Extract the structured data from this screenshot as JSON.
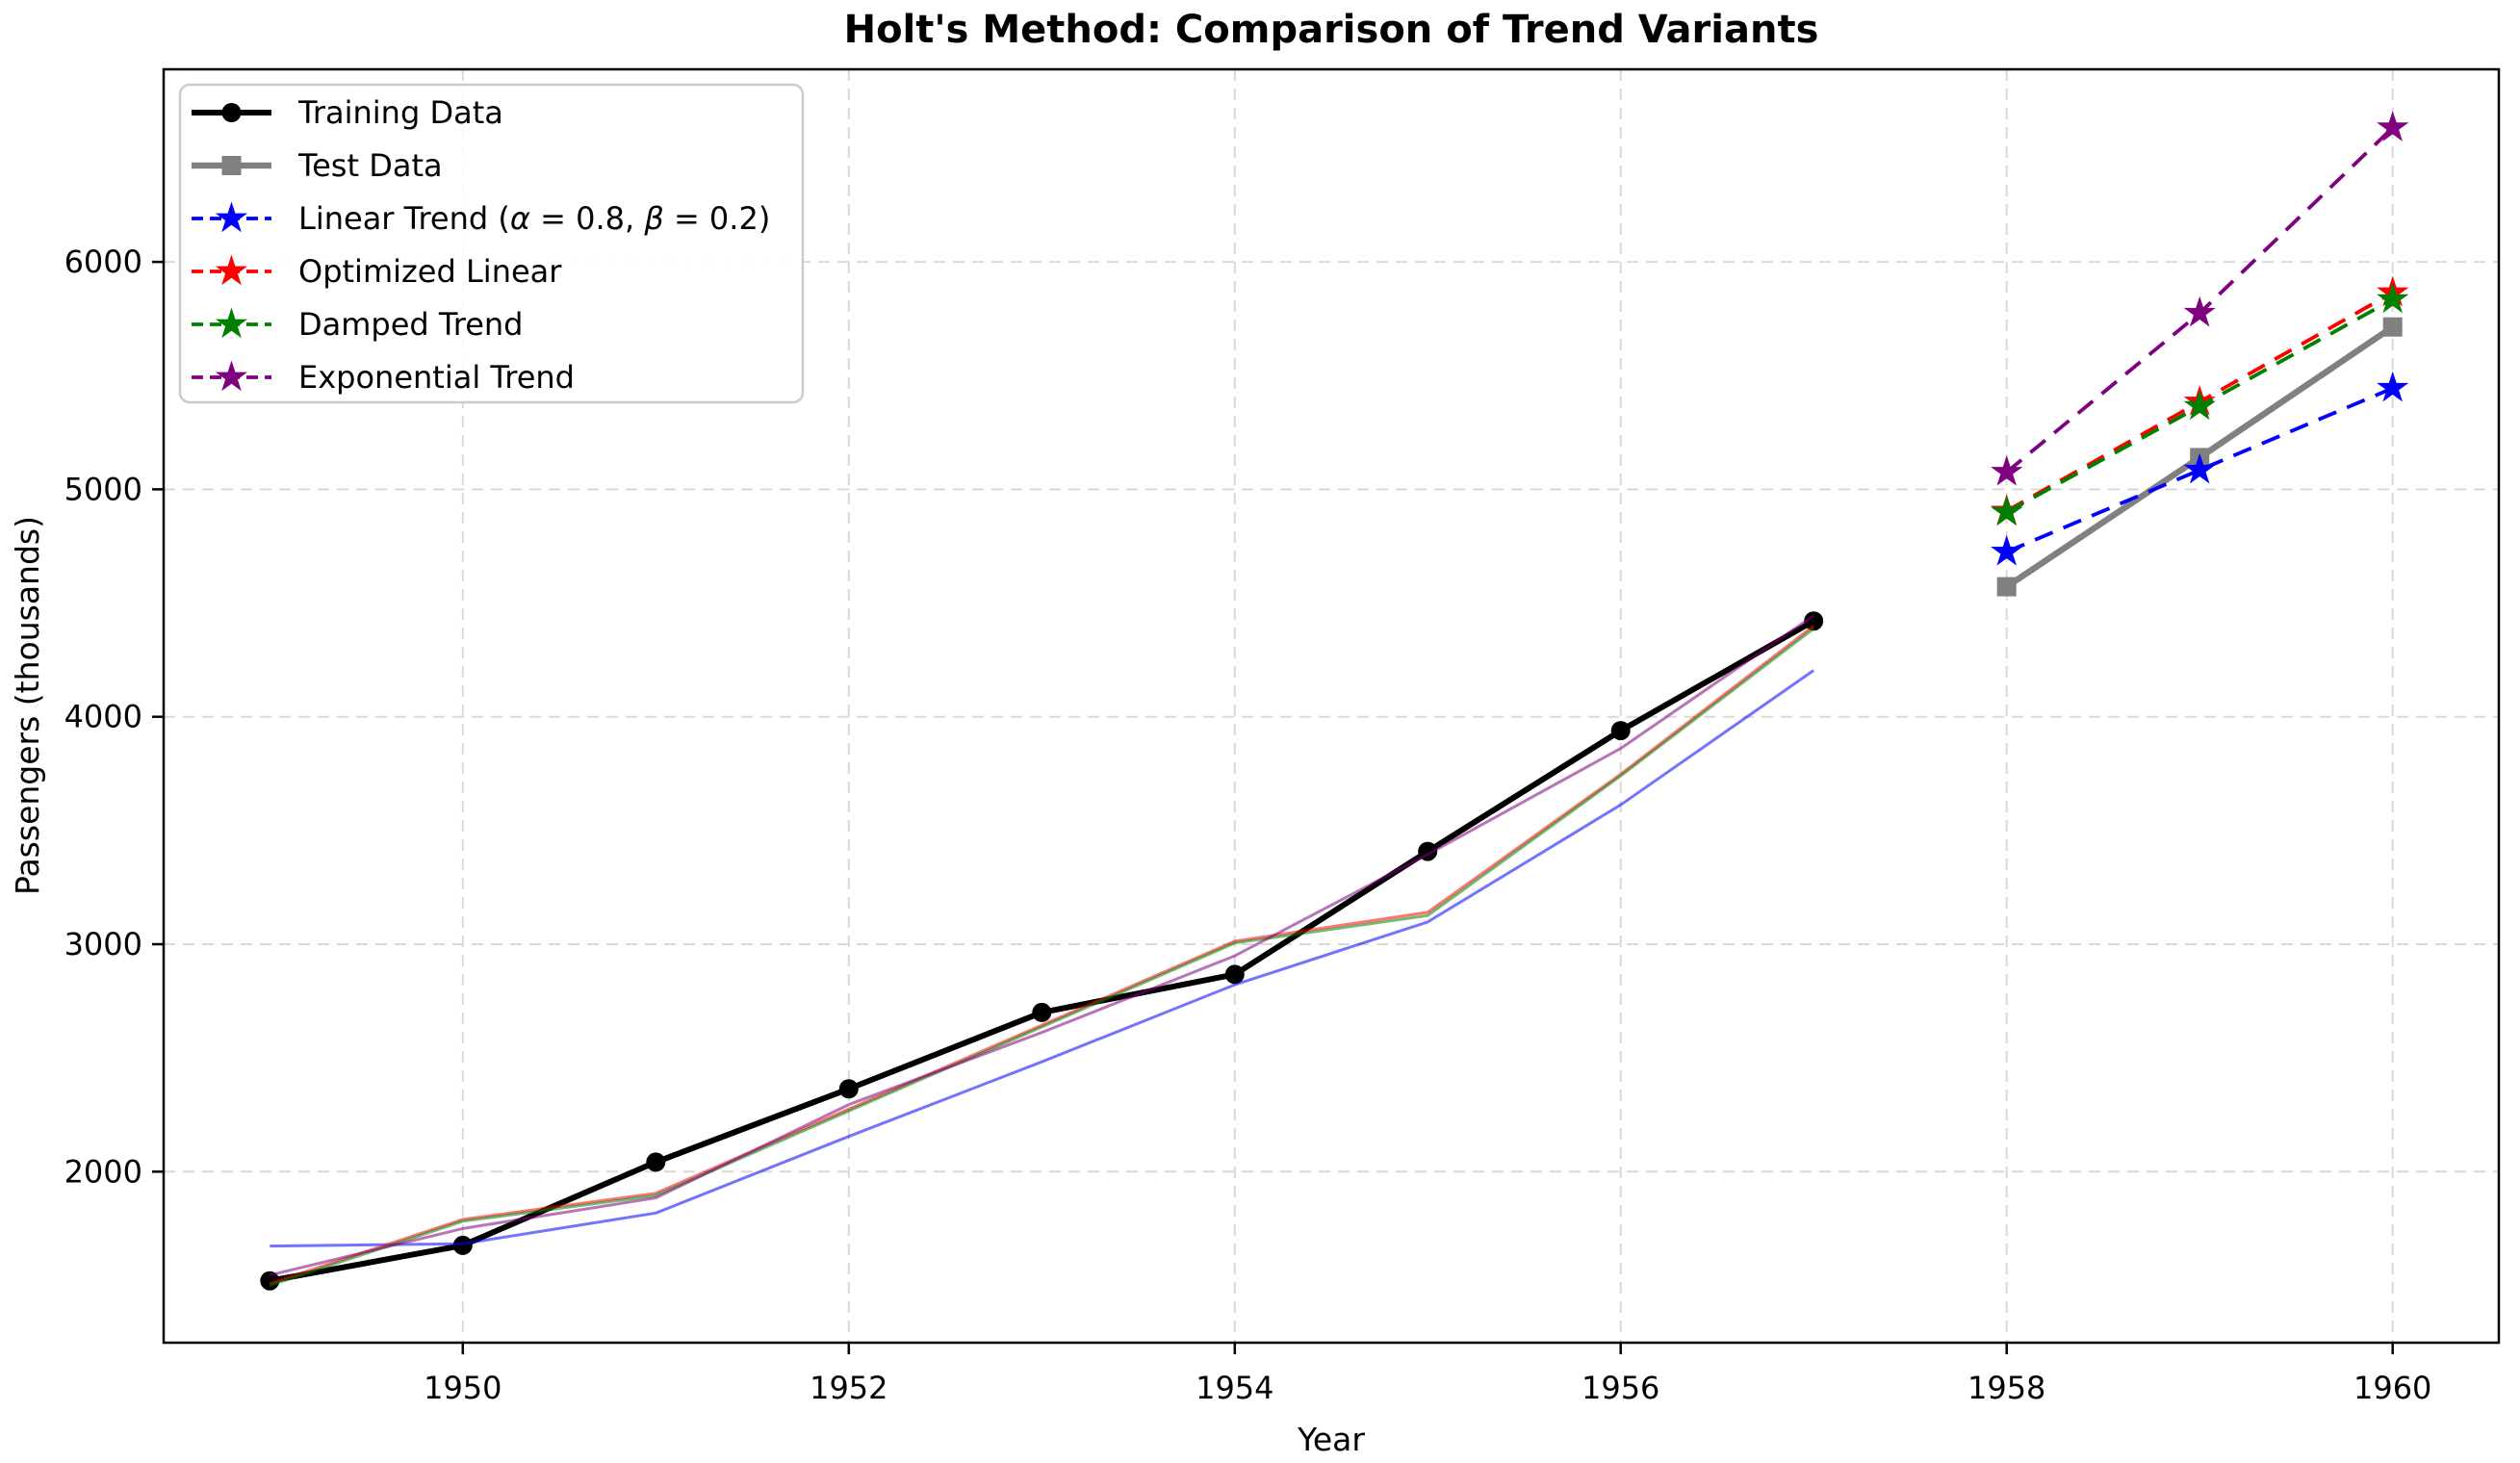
{
  "title": "Holt's Method: Comparison of Trend Variants",
  "chart_data": {
    "type": "line",
    "title": "Holt's Method: Comparison of Trend Variants",
    "xlabel": "Year",
    "ylabel": "Passengers (thousands)",
    "xlim": [
      1948.45,
      1960.55
    ],
    "ylim": [
      1248,
      6847
    ],
    "x_ticks": [
      1950,
      1952,
      1954,
      1956,
      1958,
      1960
    ],
    "y_ticks": [
      2000,
      3000,
      4000,
      5000,
      6000
    ],
    "grid": true,
    "grid_color": "#d9d9d9",
    "background_color": "#ffffff",
    "legend_position": "upper left",
    "series": [
      {
        "name": "Training Data",
        "role": "observed-train",
        "color": "#000000",
        "linestyle": "solid",
        "linewidth": 6,
        "marker": "circle",
        "x": [
          1949,
          1950,
          1951,
          1952,
          1953,
          1954,
          1955,
          1956,
          1957
        ],
        "y": [
          1520,
          1676,
          2042,
          2364,
          2700,
          2867,
          3408,
          3939,
          4421
        ]
      },
      {
        "name": "Test Data",
        "role": "observed-test",
        "color": "#808080",
        "linestyle": "solid",
        "linewidth": 6.5,
        "marker": "square",
        "x": [
          1958,
          1959,
          1960
        ],
        "y": [
          4572,
          5140,
          5714
        ]
      },
      {
        "name": "Linear Trend (α = 0.8, β = 0.2)",
        "role": "forecast",
        "color": "#0000ff",
        "linestyle": "dashed",
        "linewidth": 3.8,
        "marker": "star",
        "x": [
          1958,
          1959,
          1960
        ],
        "y": [
          4725,
          5085,
          5445
        ],
        "fitted": {
          "x": [
            1949,
            1950,
            1951,
            1952,
            1953,
            1954,
            1955,
            1956,
            1957
          ],
          "y": [
            1673,
            1683,
            1818,
            2155,
            2483,
            2822,
            3098,
            3613,
            4204
          ]
        }
      },
      {
        "name": "Optimized Linear",
        "role": "forecast",
        "color": "#ff0000",
        "linestyle": "dashed",
        "linewidth": 3.8,
        "marker": "star",
        "x": [
          1958,
          1959,
          1960
        ],
        "y": [
          4905,
          5385,
          5865
        ],
        "fitted": {
          "x": [
            1949,
            1950,
            1951,
            1952,
            1953,
            1954,
            1955,
            1956,
            1957
          ],
          "y": [
            1508,
            1790,
            1905,
            2275,
            2644,
            3013,
            3140,
            3748,
            4400
          ]
        }
      },
      {
        "name": "Damped Trend",
        "role": "forecast",
        "color": "#008000",
        "linestyle": "dashed",
        "linewidth": 3.8,
        "marker": "star",
        "x": [
          1958,
          1959,
          1960
        ],
        "y": [
          4900,
          5365,
          5835
        ],
        "fitted": {
          "x": [
            1949,
            1950,
            1951,
            1952,
            1953,
            1954,
            1955,
            1956,
            1957
          ],
          "y": [
            1500,
            1782,
            1895,
            2267,
            2636,
            3005,
            3126,
            3740,
            4388
          ]
        }
      },
      {
        "name": "Exponential Trend",
        "role": "forecast",
        "color": "#800080",
        "linestyle": "dashed",
        "linewidth": 3.8,
        "marker": "star",
        "x": [
          1958,
          1959,
          1960
        ],
        "y": [
          5076,
          5775,
          6590
        ],
        "fitted": {
          "x": [
            1949,
            1950,
            1951,
            1952,
            1953,
            1954,
            1955,
            1956,
            1957
          ],
          "y": [
            1545,
            1750,
            1885,
            2295,
            2612,
            2949,
            3395,
            3861,
            4445
          ]
        }
      }
    ],
    "fitted_line_opacity": 0.55,
    "legend_items": [
      "Training Data",
      "Test Data",
      "Linear Trend (α = 0.8, β = 0.2)",
      "Optimized Linear",
      "Damped Trend",
      "Exponential Trend"
    ]
  }
}
